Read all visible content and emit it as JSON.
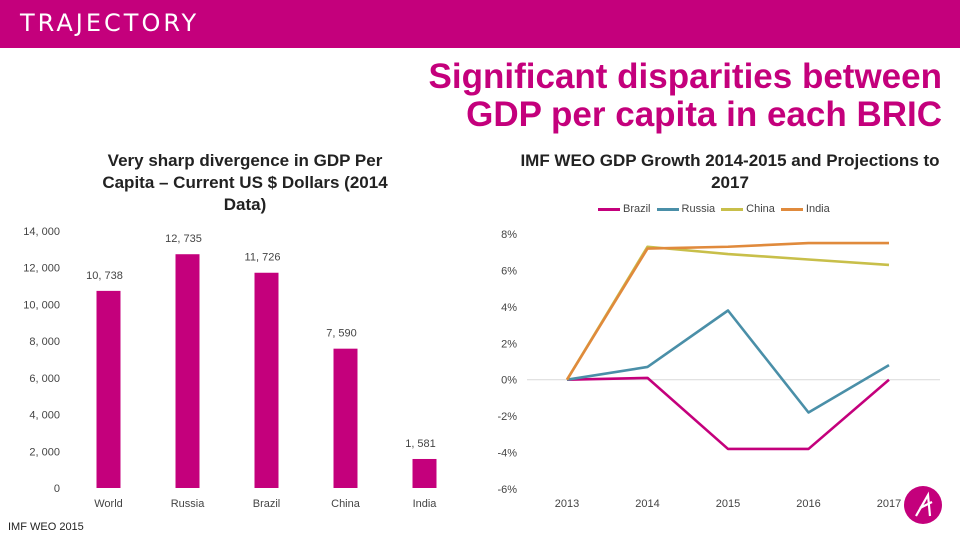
{
  "brand": {
    "name": "TRAJECTORY",
    "accent": "#c4007c"
  },
  "slide": {
    "title": "Significant disparities between GDP per capita in each BRIC",
    "source": "IMF WEO 2015"
  },
  "chart_data": [
    {
      "type": "bar",
      "title": "Very sharp divergence in GDP Per Capita – Current US $ Dollars (2014 Data)",
      "categories": [
        "World",
        "Russia",
        "Brazil",
        "China",
        "India"
      ],
      "values": [
        10738,
        12735,
        11726,
        7590,
        1581
      ],
      "labels": [
        "10, 738",
        "12, 735",
        "11, 726",
        "7, 590",
        "1, 581"
      ],
      "yticks": [
        0,
        2000,
        4000,
        6000,
        8000,
        10000,
        12000,
        14000
      ],
      "ytick_labels": [
        "0",
        "2, 000",
        "4, 000",
        "6, 000",
        "8, 000",
        "10, 000",
        "12, 000",
        "14, 000"
      ],
      "ylim": [
        0,
        14000
      ],
      "color": "#c4007c"
    },
    {
      "type": "line",
      "title": "IMF WEO GDP Growth 2014-2015 and Projections to 2017",
      "x": [
        "2013",
        "2014",
        "2015",
        "2016",
        "2017"
      ],
      "series": [
        {
          "name": "Brazil",
          "color": "#c4007c",
          "values": [
            0,
            0.1,
            -3.8,
            -3.8,
            0
          ]
        },
        {
          "name": "Russia",
          "color": "#4a8fa8",
          "values": [
            0,
            0.7,
            3.8,
            -1.8,
            0.8
          ]
        },
        {
          "name": "China",
          "color": "#c8bf4a",
          "values": [
            0,
            7.3,
            6.9,
            6.6,
            6.3
          ]
        },
        {
          "name": "India",
          "color": "#e08a3c",
          "values": [
            0,
            7.2,
            7.3,
            7.5,
            7.5
          ]
        }
      ],
      "yticks": [
        -6,
        -4,
        -2,
        0,
        2,
        4,
        6,
        8
      ],
      "ytick_labels": [
        "-6%",
        "-4%",
        "-2%",
        "0%",
        "2%",
        "4%",
        "6%",
        "8%"
      ],
      "ylim": [
        -6,
        8
      ]
    }
  ]
}
